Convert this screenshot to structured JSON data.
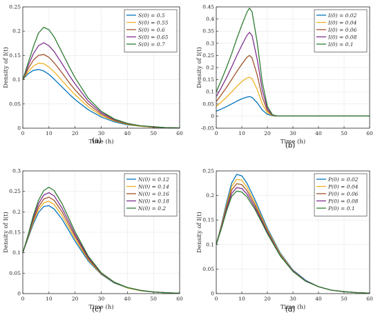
{
  "colors": {
    "series": [
      "#0072BD",
      "#EDB120",
      "#A0522D",
      "#7E2F8E",
      "#2E7D32"
    ],
    "axis": "#262626",
    "grid": "#e6e6e6"
  },
  "chart_data": [
    {
      "type": "line",
      "caption": "(a)",
      "xlabel": "Time (h)",
      "ylabel": "Density of I(t)",
      "xlim": [
        0,
        60
      ],
      "ylim": [
        0,
        0.25
      ],
      "xticks": [
        0,
        10,
        20,
        30,
        40,
        50,
        60
      ],
      "yticks": [
        0,
        0.05,
        0.1,
        0.15,
        0.2,
        0.25
      ],
      "grid": true,
      "legend_position": "top-right",
      "x": [
        0,
        2,
        4,
        6,
        8,
        10,
        12,
        15,
        18,
        20,
        25,
        30,
        35,
        40,
        45,
        50,
        55,
        60
      ],
      "series": [
        {
          "name": "S(0) = 0.5",
          "values": [
            0.1,
            0.112,
            0.119,
            0.121,
            0.118,
            0.111,
            0.101,
            0.085,
            0.069,
            0.059,
            0.038,
            0.023,
            0.013,
            0.007,
            0.004,
            0.002,
            0.001,
            0.0005
          ]
        },
        {
          "name": "S(0) = 0.55",
          "values": [
            0.1,
            0.116,
            0.128,
            0.134,
            0.133,
            0.126,
            0.116,
            0.098,
            0.08,
            0.069,
            0.044,
            0.026,
            0.015,
            0.008,
            0.004,
            0.002,
            0.001,
            0.0005
          ]
        },
        {
          "name": "S(0) = 0.6",
          "values": [
            0.1,
            0.122,
            0.14,
            0.15,
            0.152,
            0.146,
            0.135,
            0.114,
            0.092,
            0.079,
            0.05,
            0.029,
            0.016,
            0.009,
            0.005,
            0.002,
            0.001,
            0.0005
          ]
        },
        {
          "name": "S(0) = 0.65",
          "values": [
            0.1,
            0.128,
            0.153,
            0.17,
            0.176,
            0.17,
            0.158,
            0.133,
            0.107,
            0.091,
            0.056,
            0.032,
            0.018,
            0.01,
            0.005,
            0.003,
            0.001,
            0.0005
          ]
        },
        {
          "name": "S(0) = 0.7",
          "values": [
            0.1,
            0.134,
            0.167,
            0.196,
            0.208,
            0.203,
            0.188,
            0.156,
            0.124,
            0.104,
            0.062,
            0.035,
            0.019,
            0.01,
            0.005,
            0.003,
            0.001,
            0.0005
          ]
        }
      ]
    },
    {
      "type": "line",
      "caption": "(b)",
      "xlabel": "Time (h)",
      "ylabel": "Density of I(t)",
      "xlim": [
        0,
        60
      ],
      "ylim": [
        -0.05,
        0.45
      ],
      "xticks": [
        0,
        10,
        20,
        30,
        40,
        50,
        60
      ],
      "yticks": [
        -0.05,
        0,
        0.05,
        0.1,
        0.15,
        0.2,
        0.25,
        0.3,
        0.35,
        0.4,
        0.45
      ],
      "grid": true,
      "legend_position": "top-right",
      "x": [
        0,
        2,
        4,
        6,
        8,
        10,
        12,
        13,
        14,
        16,
        18,
        20,
        22,
        24,
        30,
        40,
        50,
        60
      ],
      "series": [
        {
          "name": "I(0) = 0.02",
          "values": [
            0.02,
            0.029,
            0.039,
            0.05,
            0.061,
            0.071,
            0.078,
            0.08,
            0.077,
            0.055,
            0.025,
            0.007,
            0.001,
            0,
            0,
            0,
            0,
            0
          ]
        },
        {
          "name": "I(0) = 0.04",
          "values": [
            0.04,
            0.058,
            0.078,
            0.099,
            0.122,
            0.142,
            0.157,
            0.16,
            0.154,
            0.11,
            0.05,
            0.014,
            0.002,
            0,
            0,
            0,
            0,
            0
          ]
        },
        {
          "name": "I(0) = 0.06",
          "values": [
            0.06,
            0.088,
            0.118,
            0.15,
            0.183,
            0.214,
            0.242,
            0.25,
            0.24,
            0.17,
            0.078,
            0.022,
            0.003,
            0,
            0,
            0,
            0,
            0
          ]
        },
        {
          "name": "I(0) = 0.08",
          "values": [
            0.08,
            0.118,
            0.158,
            0.202,
            0.248,
            0.292,
            0.332,
            0.345,
            0.332,
            0.235,
            0.108,
            0.03,
            0.004,
            0,
            0,
            0,
            0,
            0
          ]
        },
        {
          "name": "I(0) = 0.1",
          "values": [
            0.1,
            0.148,
            0.2,
            0.256,
            0.318,
            0.375,
            0.428,
            0.445,
            0.43,
            0.305,
            0.14,
            0.04,
            0.005,
            0,
            0,
            0,
            0,
            0
          ]
        }
      ]
    },
    {
      "type": "line",
      "caption": "(c)",
      "xlabel": "Time (h)",
      "ylabel": "Density of I(t)",
      "xlim": [
        0,
        60
      ],
      "ylim": [
        0,
        0.3
      ],
      "xticks": [
        0,
        10,
        20,
        30,
        40,
        50,
        60
      ],
      "yticks": [
        0,
        0.05,
        0.1,
        0.15,
        0.2,
        0.25,
        0.3
      ],
      "grid": true,
      "legend_position": "top-right",
      "x": [
        0,
        2,
        4,
        6,
        8,
        10,
        12,
        15,
        18,
        20,
        25,
        30,
        35,
        40,
        45,
        50,
        55,
        60
      ],
      "series": [
        {
          "name": "N(0) = 0.12",
          "values": [
            0.1,
            0.135,
            0.17,
            0.198,
            0.213,
            0.215,
            0.207,
            0.182,
            0.15,
            0.128,
            0.08,
            0.047,
            0.026,
            0.014,
            0.007,
            0.004,
            0.002,
            0.001
          ]
        },
        {
          "name": "N(0) = 0.14",
          "values": [
            0.1,
            0.137,
            0.175,
            0.205,
            0.222,
            0.226,
            0.218,
            0.191,
            0.157,
            0.134,
            0.083,
            0.048,
            0.027,
            0.014,
            0.007,
            0.004,
            0.002,
            0.001
          ]
        },
        {
          "name": "N(0) = 0.16",
          "values": [
            0.1,
            0.139,
            0.18,
            0.212,
            0.231,
            0.236,
            0.228,
            0.2,
            0.164,
            0.14,
            0.086,
            0.049,
            0.027,
            0.015,
            0.008,
            0.004,
            0.002,
            0.001
          ]
        },
        {
          "name": "N(0) = 0.18",
          "values": [
            0.1,
            0.141,
            0.185,
            0.22,
            0.241,
            0.247,
            0.239,
            0.209,
            0.171,
            0.145,
            0.089,
            0.05,
            0.028,
            0.015,
            0.008,
            0.004,
            0.002,
            0.001
          ]
        },
        {
          "name": "N(0) = 0.2",
          "values": [
            0.1,
            0.143,
            0.19,
            0.228,
            0.252,
            0.26,
            0.252,
            0.22,
            0.179,
            0.151,
            0.092,
            0.051,
            0.028,
            0.015,
            0.008,
            0.004,
            0.002,
            0.001
          ]
        }
      ]
    },
    {
      "type": "line",
      "caption": "(d)",
      "xlabel": "Time (h)",
      "ylabel": "Density of I(t)",
      "xlim": [
        0,
        60
      ],
      "ylim": [
        0,
        0.25
      ],
      "xticks": [
        0,
        10,
        20,
        30,
        40,
        50,
        60
      ],
      "yticks": [
        0,
        0.05,
        0.1,
        0.15,
        0.2,
        0.25
      ],
      "grid": true,
      "legend_position": "top-right",
      "x": [
        0,
        2,
        4,
        6,
        8,
        10,
        12,
        15,
        18,
        20,
        25,
        30,
        35,
        40,
        45,
        50,
        55,
        60
      ],
      "series": [
        {
          "name": "P(0) = 0.02",
          "values": [
            0.1,
            0.14,
            0.185,
            0.225,
            0.243,
            0.24,
            0.225,
            0.193,
            0.157,
            0.133,
            0.083,
            0.048,
            0.027,
            0.014,
            0.007,
            0.004,
            0.002,
            0.001
          ]
        },
        {
          "name": "P(0) = 0.04",
          "values": [
            0.1,
            0.138,
            0.18,
            0.218,
            0.233,
            0.231,
            0.217,
            0.187,
            0.153,
            0.13,
            0.081,
            0.047,
            0.026,
            0.014,
            0.007,
            0.004,
            0.002,
            0.001
          ]
        },
        {
          "name": "P(0) = 0.06",
          "values": [
            0.1,
            0.136,
            0.176,
            0.211,
            0.224,
            0.222,
            0.21,
            0.182,
            0.149,
            0.127,
            0.079,
            0.046,
            0.026,
            0.014,
            0.007,
            0.004,
            0.002,
            0.001
          ]
        },
        {
          "name": "P(0) = 0.08",
          "values": [
            0.1,
            0.134,
            0.172,
            0.204,
            0.216,
            0.214,
            0.203,
            0.177,
            0.146,
            0.125,
            0.078,
            0.046,
            0.026,
            0.014,
            0.007,
            0.004,
            0.002,
            0.001
          ]
        },
        {
          "name": "P(0) = 0.1",
          "values": [
            0.1,
            0.132,
            0.168,
            0.198,
            0.209,
            0.207,
            0.197,
            0.173,
            0.143,
            0.122,
            0.077,
            0.045,
            0.025,
            0.014,
            0.007,
            0.004,
            0.002,
            0.001
          ]
        }
      ]
    }
  ]
}
